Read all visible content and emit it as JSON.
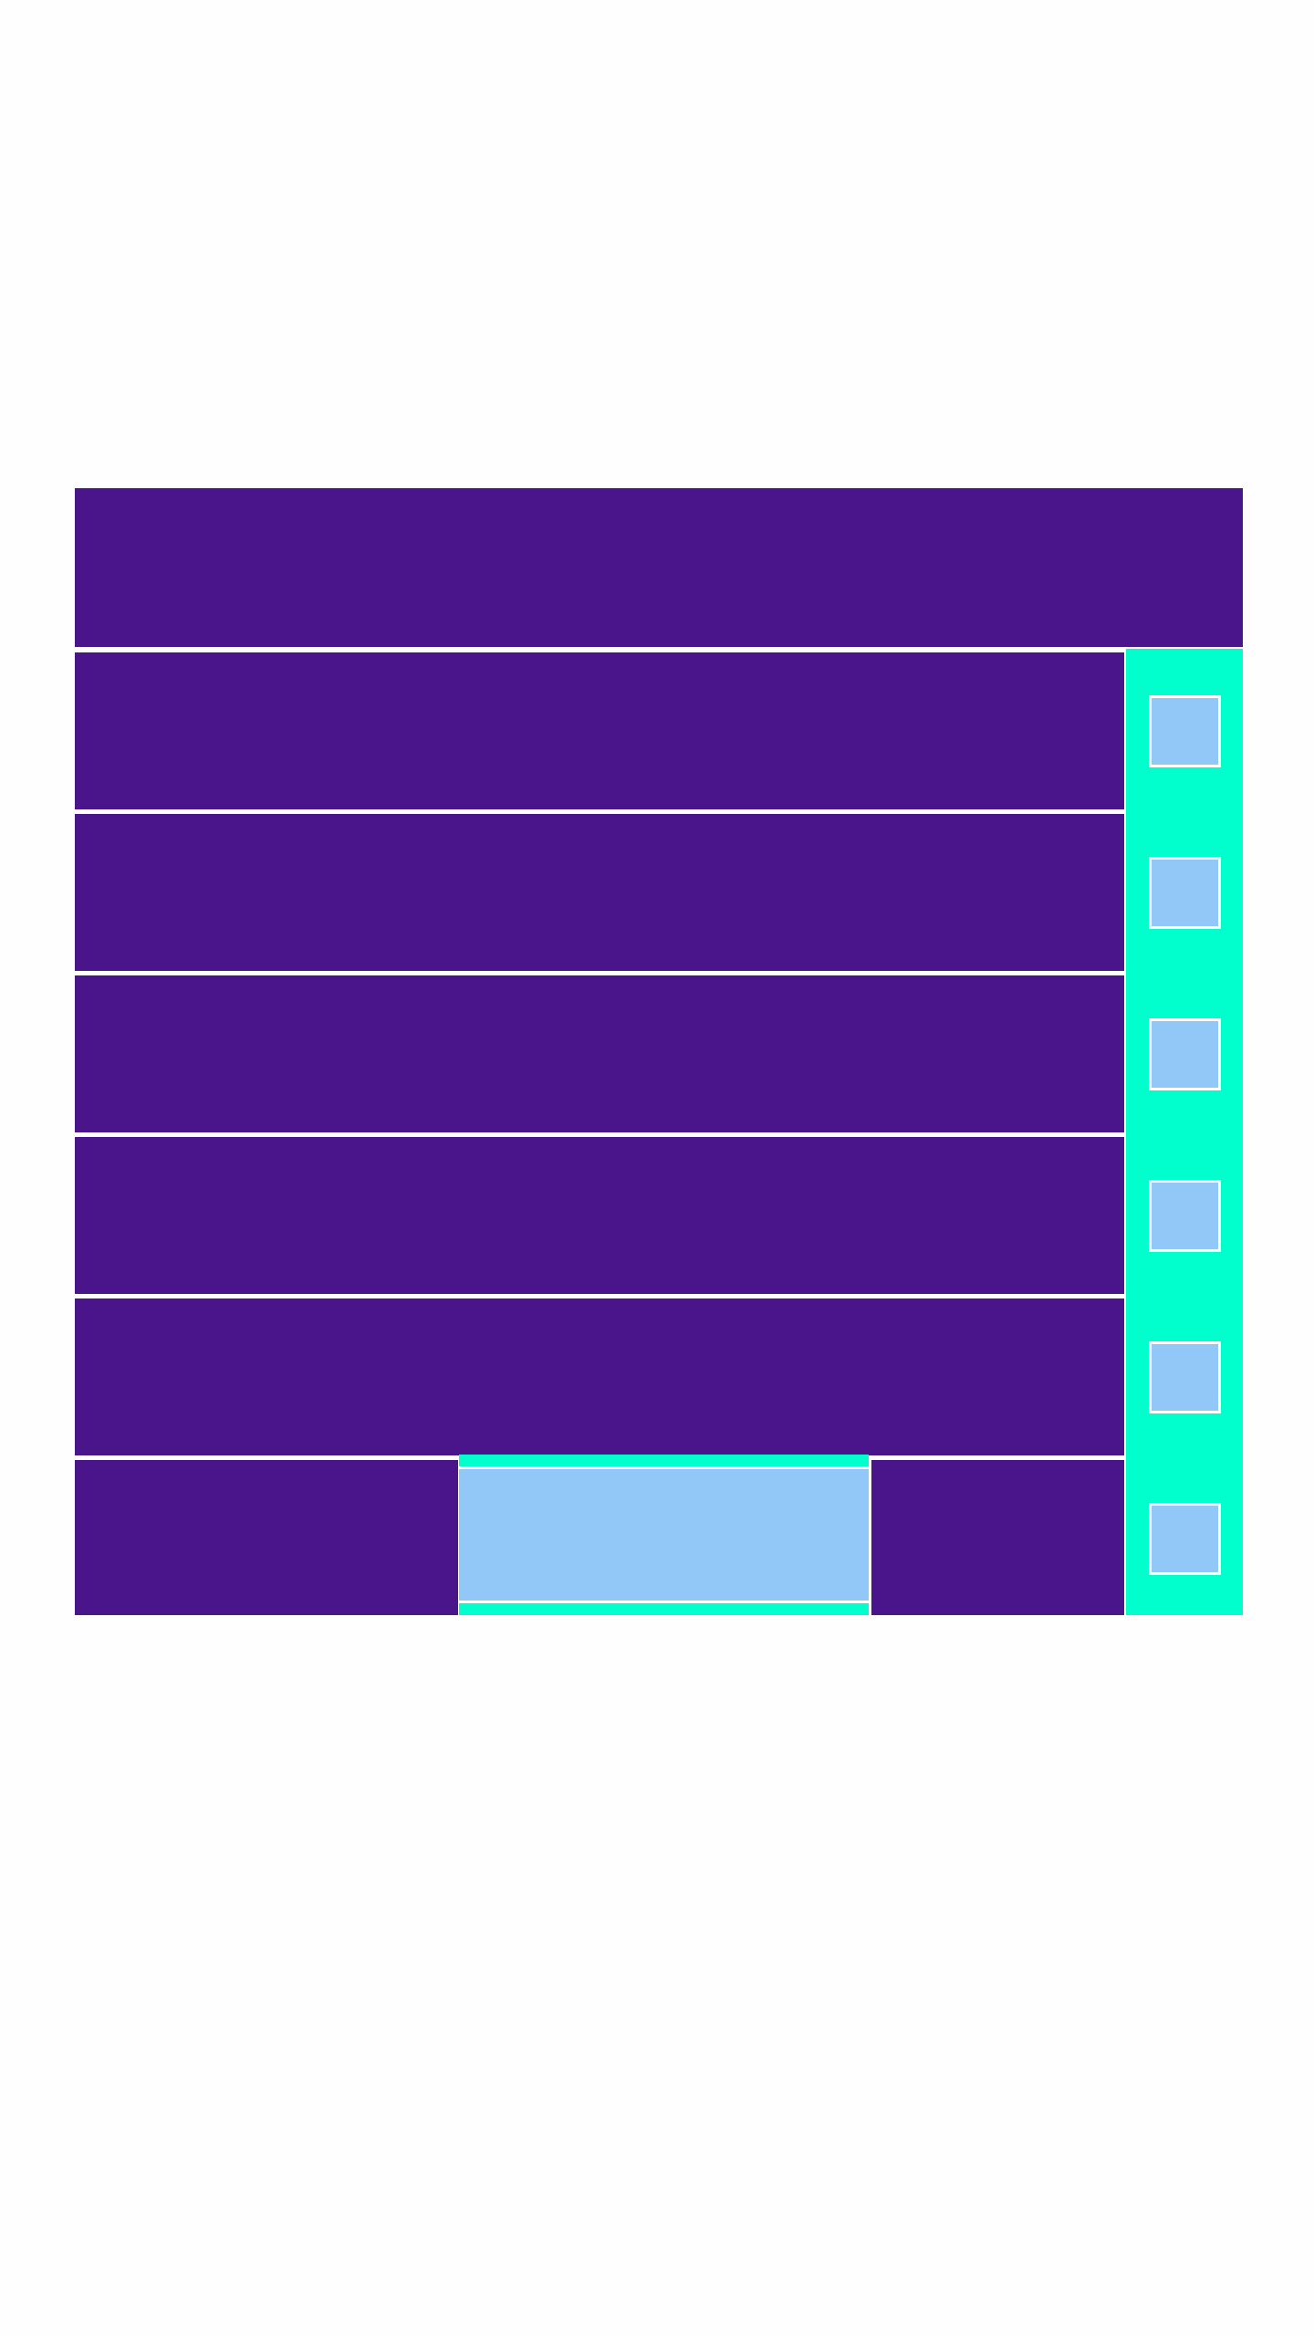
{
  "colors": {
    "background": "#fefefe",
    "row": "#4a158b",
    "accent": "#00ffcc",
    "button": "#92c8f7",
    "divider": "#ffffff"
  },
  "header": {
    "title": ""
  },
  "rows": [
    {
      "label": "",
      "button_label": ""
    },
    {
      "label": "",
      "button_label": ""
    },
    {
      "label": "",
      "button_label": ""
    },
    {
      "label": "",
      "button_label": ""
    },
    {
      "label": "",
      "button_label": ""
    }
  ],
  "footer": {
    "left_label": "",
    "center_button_label": "",
    "right_label": "",
    "side_button_label": ""
  }
}
